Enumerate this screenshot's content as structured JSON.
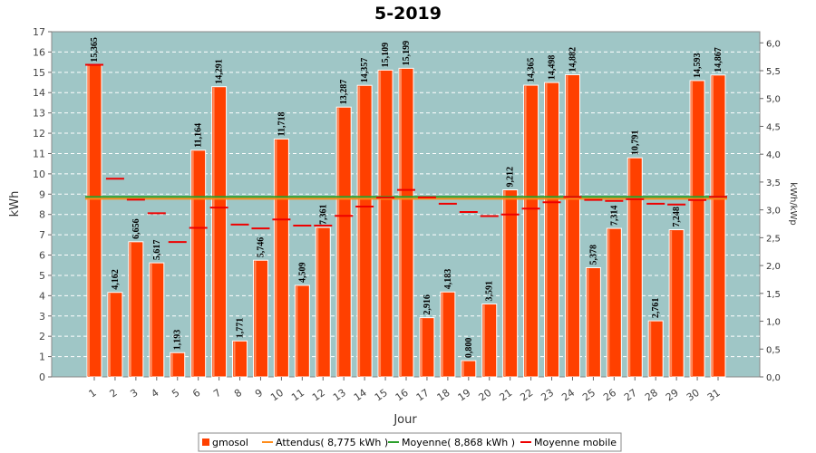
{
  "chart_data": {
    "type": "bar",
    "title": "5-2019",
    "xlabel": "Jour",
    "ylabel": "kWh",
    "y2label": "kWh/kWp",
    "ylim": [
      0,
      17
    ],
    "y2lim": [
      0,
      6.2
    ],
    "y_ticks": [
      0,
      1,
      2,
      3,
      4,
      5,
      6,
      7,
      8,
      9,
      10,
      11,
      12,
      13,
      14,
      15,
      16,
      17
    ],
    "y2_ticks": [
      "0,0",
      "0,5",
      "1,0",
      "1,5",
      "2,0",
      "2,5",
      "3,0",
      "3,5",
      "4,0",
      "4,5",
      "5,0",
      "5,5",
      "6,0"
    ],
    "categories": [
      "1",
      "2",
      "3",
      "4",
      "5",
      "6",
      "7",
      "8",
      "9",
      "10",
      "11",
      "12",
      "13",
      "14",
      "15",
      "16",
      "17",
      "18",
      "19",
      "20",
      "21",
      "22",
      "23",
      "24",
      "25",
      "26",
      "27",
      "28",
      "29",
      "30",
      "31"
    ],
    "series": [
      {
        "name": "gmosol",
        "type": "bar",
        "color": "#ff4000",
        "values": [
          15.365,
          4.162,
          6.656,
          5.617,
          1.193,
          11.164,
          14.291,
          1.771,
          5.746,
          11.718,
          4.509,
          7.361,
          13.287,
          14.357,
          15.109,
          15.199,
          2.916,
          4.183,
          0.8,
          3.591,
          9.212,
          14.365,
          14.498,
          14.882,
          5.378,
          7.314,
          10.791,
          2.761,
          7.248,
          14.593,
          14.867
        ],
        "labels": [
          "15,365",
          "4,162",
          "6,656",
          "5,617",
          "1,193",
          "11,164",
          "14,291",
          "1,771",
          "5,746",
          "11,718",
          "4,509",
          "7,361",
          "13,287",
          "14,357",
          "15,109",
          "15,199",
          "2,916",
          "4,183",
          "0,800",
          "3,591",
          "9,212",
          "14,365",
          "14,498",
          "14,882",
          "5,378",
          "7,314",
          "10,791",
          "2,761",
          "7,248",
          "14,593",
          "14,867"
        ]
      },
      {
        "name": "Attendus( 8,775 kWh )",
        "type": "line",
        "color": "#ff8c1a",
        "value": 8.775
      },
      {
        "name": "Moyenne( 8,868 kWh )",
        "type": "line",
        "color": "#2ca02c",
        "value": 8.868
      },
      {
        "name": "Moyenne mobile",
        "type": "marker",
        "color": "#ee0000",
        "values": [
          15.37,
          9.76,
          8.73,
          8.06,
          6.64,
          7.34,
          8.34,
          7.5,
          7.31,
          7.75,
          7.45,
          7.45,
          7.93,
          8.39,
          8.83,
          9.21,
          8.84,
          8.53,
          8.12,
          7.92,
          8.0,
          8.29,
          8.6,
          8.86,
          8.72,
          8.67,
          8.75,
          8.53,
          8.49,
          8.71,
          8.87
        ]
      }
    ],
    "legend": "bottom",
    "grid": true
  }
}
